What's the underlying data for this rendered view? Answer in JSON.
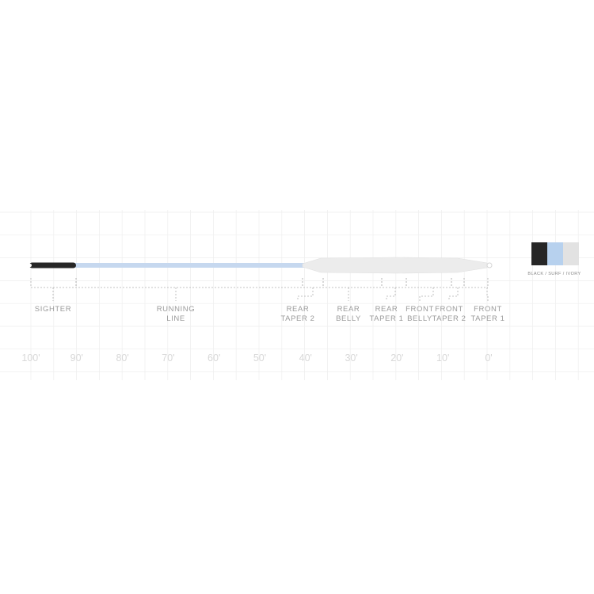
{
  "colors": {
    "sighter": "#262626",
    "running_line": "#c6d8ef",
    "head": "#ececec",
    "grid": "#eeeeee",
    "bracket": "#b0b0b0",
    "label": "#9a9a9a",
    "scale": "#d8d8d8"
  },
  "segments": [
    {
      "key": "sighter",
      "lines": [
        "SIGHTER"
      ]
    },
    {
      "key": "running-line",
      "lines": [
        "RUNNING",
        "LINE"
      ]
    },
    {
      "key": "rear-taper-2",
      "lines": [
        "REAR",
        "TAPER 2"
      ]
    },
    {
      "key": "rear-belly",
      "lines": [
        "REAR",
        "BELLY"
      ]
    },
    {
      "key": "rear-taper-1",
      "lines": [
        "REAR",
        "TAPER 1"
      ]
    },
    {
      "key": "front-belly",
      "lines": [
        "FRONT",
        "BELLY"
      ]
    },
    {
      "key": "front-taper-2",
      "lines": [
        "FRONT",
        "TAPER 2"
      ]
    },
    {
      "key": "front-taper-1",
      "lines": [
        "FRONT",
        "TAPER 1"
      ]
    }
  ],
  "scale_labels": [
    "100'",
    "90'",
    "80'",
    "70'",
    "60'",
    "50'",
    "40'",
    "30'",
    "20'",
    "10'",
    "0'"
  ],
  "color_swatch": {
    "colors": [
      "#262626",
      "#b7d1ee",
      "#e2e2e2"
    ],
    "caption": "BLACK / SURF / IVORY"
  }
}
